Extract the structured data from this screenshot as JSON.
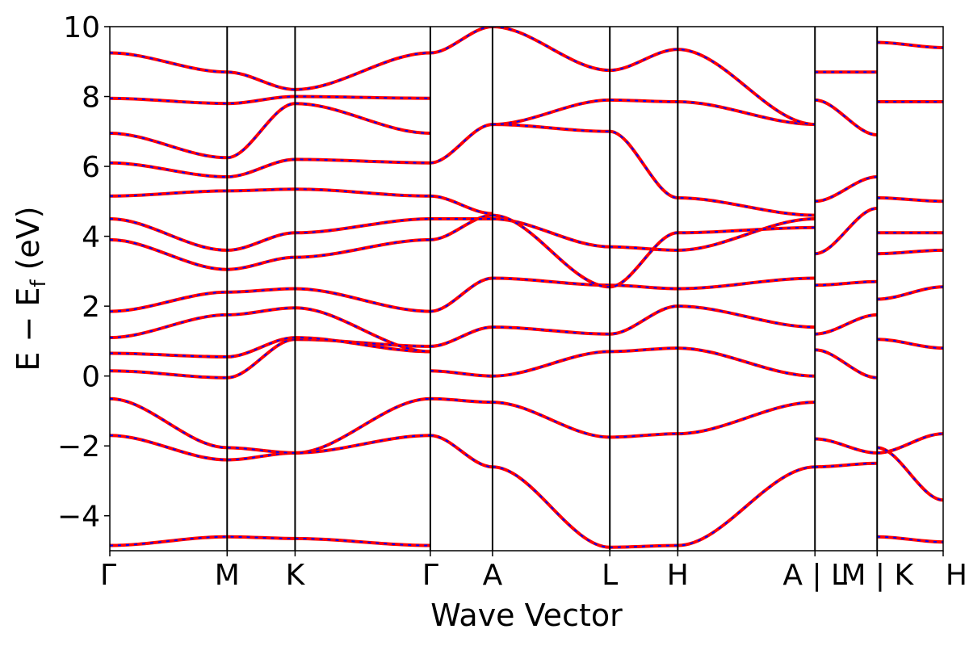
{
  "chart_data": {
    "type": "line",
    "title": "",
    "xlabel": "Wave Vector",
    "ylabel_parts": {
      "prefix": "E − E",
      "subscript": "f",
      "suffix": " (eV)"
    },
    "ylim": [
      -5,
      10
    ],
    "xlim": [
      0,
      13.0
    ],
    "y_ticks": [
      -4,
      -2,
      0,
      2,
      4,
      6,
      8,
      10
    ],
    "y_tick_labels": [
      "−4",
      "−2",
      "0",
      "2",
      "4",
      "6",
      "8",
      "10"
    ],
    "k_points": [
      {
        "label": "Γ",
        "x": 0.0
      },
      {
        "label": "M",
        "x": 1.83
      },
      {
        "label": "K",
        "x": 2.89
      },
      {
        "label": "Γ",
        "x": 5.0
      },
      {
        "label": "A",
        "x": 5.97
      },
      {
        "label": "L",
        "x": 7.8
      },
      {
        "label": "H",
        "x": 8.86
      },
      {
        "label": "A | L",
        "x": 11.0
      },
      {
        "label": "M | K",
        "x": 11.97
      },
      {
        "label": "H",
        "x": 13.0
      }
    ],
    "vertical_lines_x": [
      1.83,
      2.89,
      5.0,
      5.97,
      7.8,
      8.86,
      11.0,
      11.97
    ],
    "styles": {
      "red_color": "#ff0000",
      "blue_color": "#0000ff",
      "blue_dash": "dashed overlay"
    },
    "segments": [
      {
        "x": [
          0,
          1.83,
          2.89,
          5.0
        ],
        "bands": [
          [
            -4.85,
            -4.6,
            -4.65,
            -4.85
          ],
          [
            -1.7,
            -2.4,
            -2.2,
            -0.65
          ],
          [
            -0.65,
            -2.05,
            -2.2,
            -1.7
          ],
          [
            0.15,
            -0.05,
            1.05,
            0.85
          ],
          [
            0.65,
            0.55,
            1.1,
            0.7
          ],
          [
            1.1,
            1.75,
            1.95,
            0.7
          ],
          [
            1.85,
            2.4,
            2.5,
            1.85
          ],
          [
            3.9,
            3.05,
            3.4,
            3.9
          ],
          [
            4.5,
            3.6,
            4.1,
            4.5
          ],
          [
            5.15,
            5.3,
            5.35,
            5.15
          ],
          [
            6.1,
            5.7,
            6.2,
            6.1
          ],
          [
            6.95,
            6.25,
            7.8,
            6.95
          ],
          [
            7.95,
            7.8,
            8.0,
            7.95
          ],
          [
            9.25,
            8.7,
            8.2,
            9.25
          ]
        ]
      },
      {
        "x": [
          5.0,
          5.97
        ],
        "bands": [
          [
            -0.65,
            -0.75
          ],
          [
            -1.7,
            -2.6
          ],
          [
            0.15,
            0.0
          ],
          [
            0.85,
            1.4
          ],
          [
            1.85,
            2.8
          ],
          [
            3.9,
            4.6
          ],
          [
            4.5,
            4.5
          ],
          [
            5.15,
            4.65
          ],
          [
            6.1,
            7.2
          ],
          [
            9.25,
            10.0
          ]
        ]
      },
      {
        "x": [
          5.97,
          7.8,
          8.86,
          11.0
        ],
        "bands": [
          [
            -2.6,
            -4.9,
            -4.85,
            -2.6
          ],
          [
            -0.75,
            -1.75,
            -1.65,
            -0.75
          ],
          [
            0.0,
            0.7,
            0.8,
            0.0
          ],
          [
            1.4,
            1.2,
            2.0,
            1.4
          ],
          [
            2.8,
            2.6,
            2.5,
            2.8
          ],
          [
            4.5,
            3.7,
            3.6,
            4.5
          ],
          [
            4.6,
            2.55,
            4.1,
            4.25
          ],
          [
            7.2,
            7.0,
            5.1,
            4.6
          ],
          [
            7.2,
            7.9,
            7.85,
            7.2
          ],
          [
            10.0,
            8.75,
            9.35,
            7.2
          ]
        ]
      },
      {
        "x": [
          11.0,
          11.97
        ],
        "bands": [
          [
            -2.6,
            -2.5
          ],
          [
            -1.8,
            -2.2
          ],
          [
            0.75,
            -0.05
          ],
          [
            1.2,
            1.75
          ],
          [
            2.6,
            2.7
          ],
          [
            3.5,
            4.8
          ],
          [
            5.0,
            5.7
          ],
          [
            7.9,
            6.9
          ],
          [
            8.7,
            8.7
          ]
        ]
      },
      {
        "x": [
          11.97,
          13.0
        ],
        "bands": [
          [
            -4.6,
            -4.75
          ],
          [
            -2.2,
            -1.65
          ],
          [
            -2.05,
            -3.55
          ],
          [
            1.05,
            0.8
          ],
          [
            2.2,
            2.55
          ],
          [
            3.5,
            3.6
          ],
          [
            4.1,
            4.1
          ],
          [
            5.1,
            5.0
          ],
          [
            7.85,
            7.85
          ],
          [
            9.55,
            9.4
          ]
        ]
      }
    ]
  }
}
